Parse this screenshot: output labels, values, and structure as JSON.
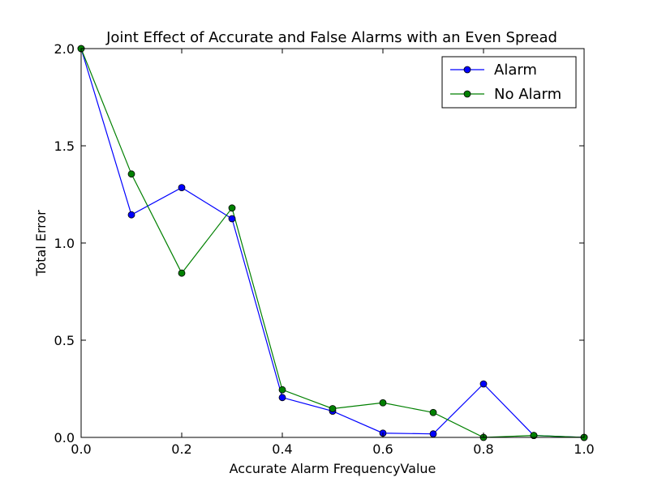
{
  "chart_data": {
    "type": "line",
    "title": "Joint Effect of Accurate and False Alarms with an Even Spread",
    "xlabel": "Accurate Alarm FrequencyValue",
    "ylabel": "Total Error",
    "xlim": [
      0.0,
      1.0
    ],
    "ylim": [
      0.0,
      2.0
    ],
    "x_ticks": [
      "0.0",
      "0.2",
      "0.4",
      "0.6",
      "0.8",
      "1.0"
    ],
    "y_ticks": [
      "0.0",
      "0.5",
      "1.0",
      "1.5",
      "2.0"
    ],
    "x": [
      0.0,
      0.1,
      0.2,
      0.3,
      0.4,
      0.5,
      0.6,
      0.7,
      0.8,
      0.9,
      1.0
    ],
    "series": [
      {
        "name": "Alarm",
        "color": "#0000ff",
        "values": [
          2.0,
          1.145,
          1.285,
          1.125,
          0.205,
          0.135,
          0.022,
          0.018,
          0.275,
          0.01,
          0.0
        ]
      },
      {
        "name": "No Alarm",
        "color": "#008000",
        "values": [
          2.0,
          1.355,
          0.845,
          1.18,
          0.245,
          0.148,
          0.178,
          0.128,
          0.0,
          0.01,
          0.0
        ]
      }
    ],
    "legend_position": "top-right",
    "grid": false
  }
}
